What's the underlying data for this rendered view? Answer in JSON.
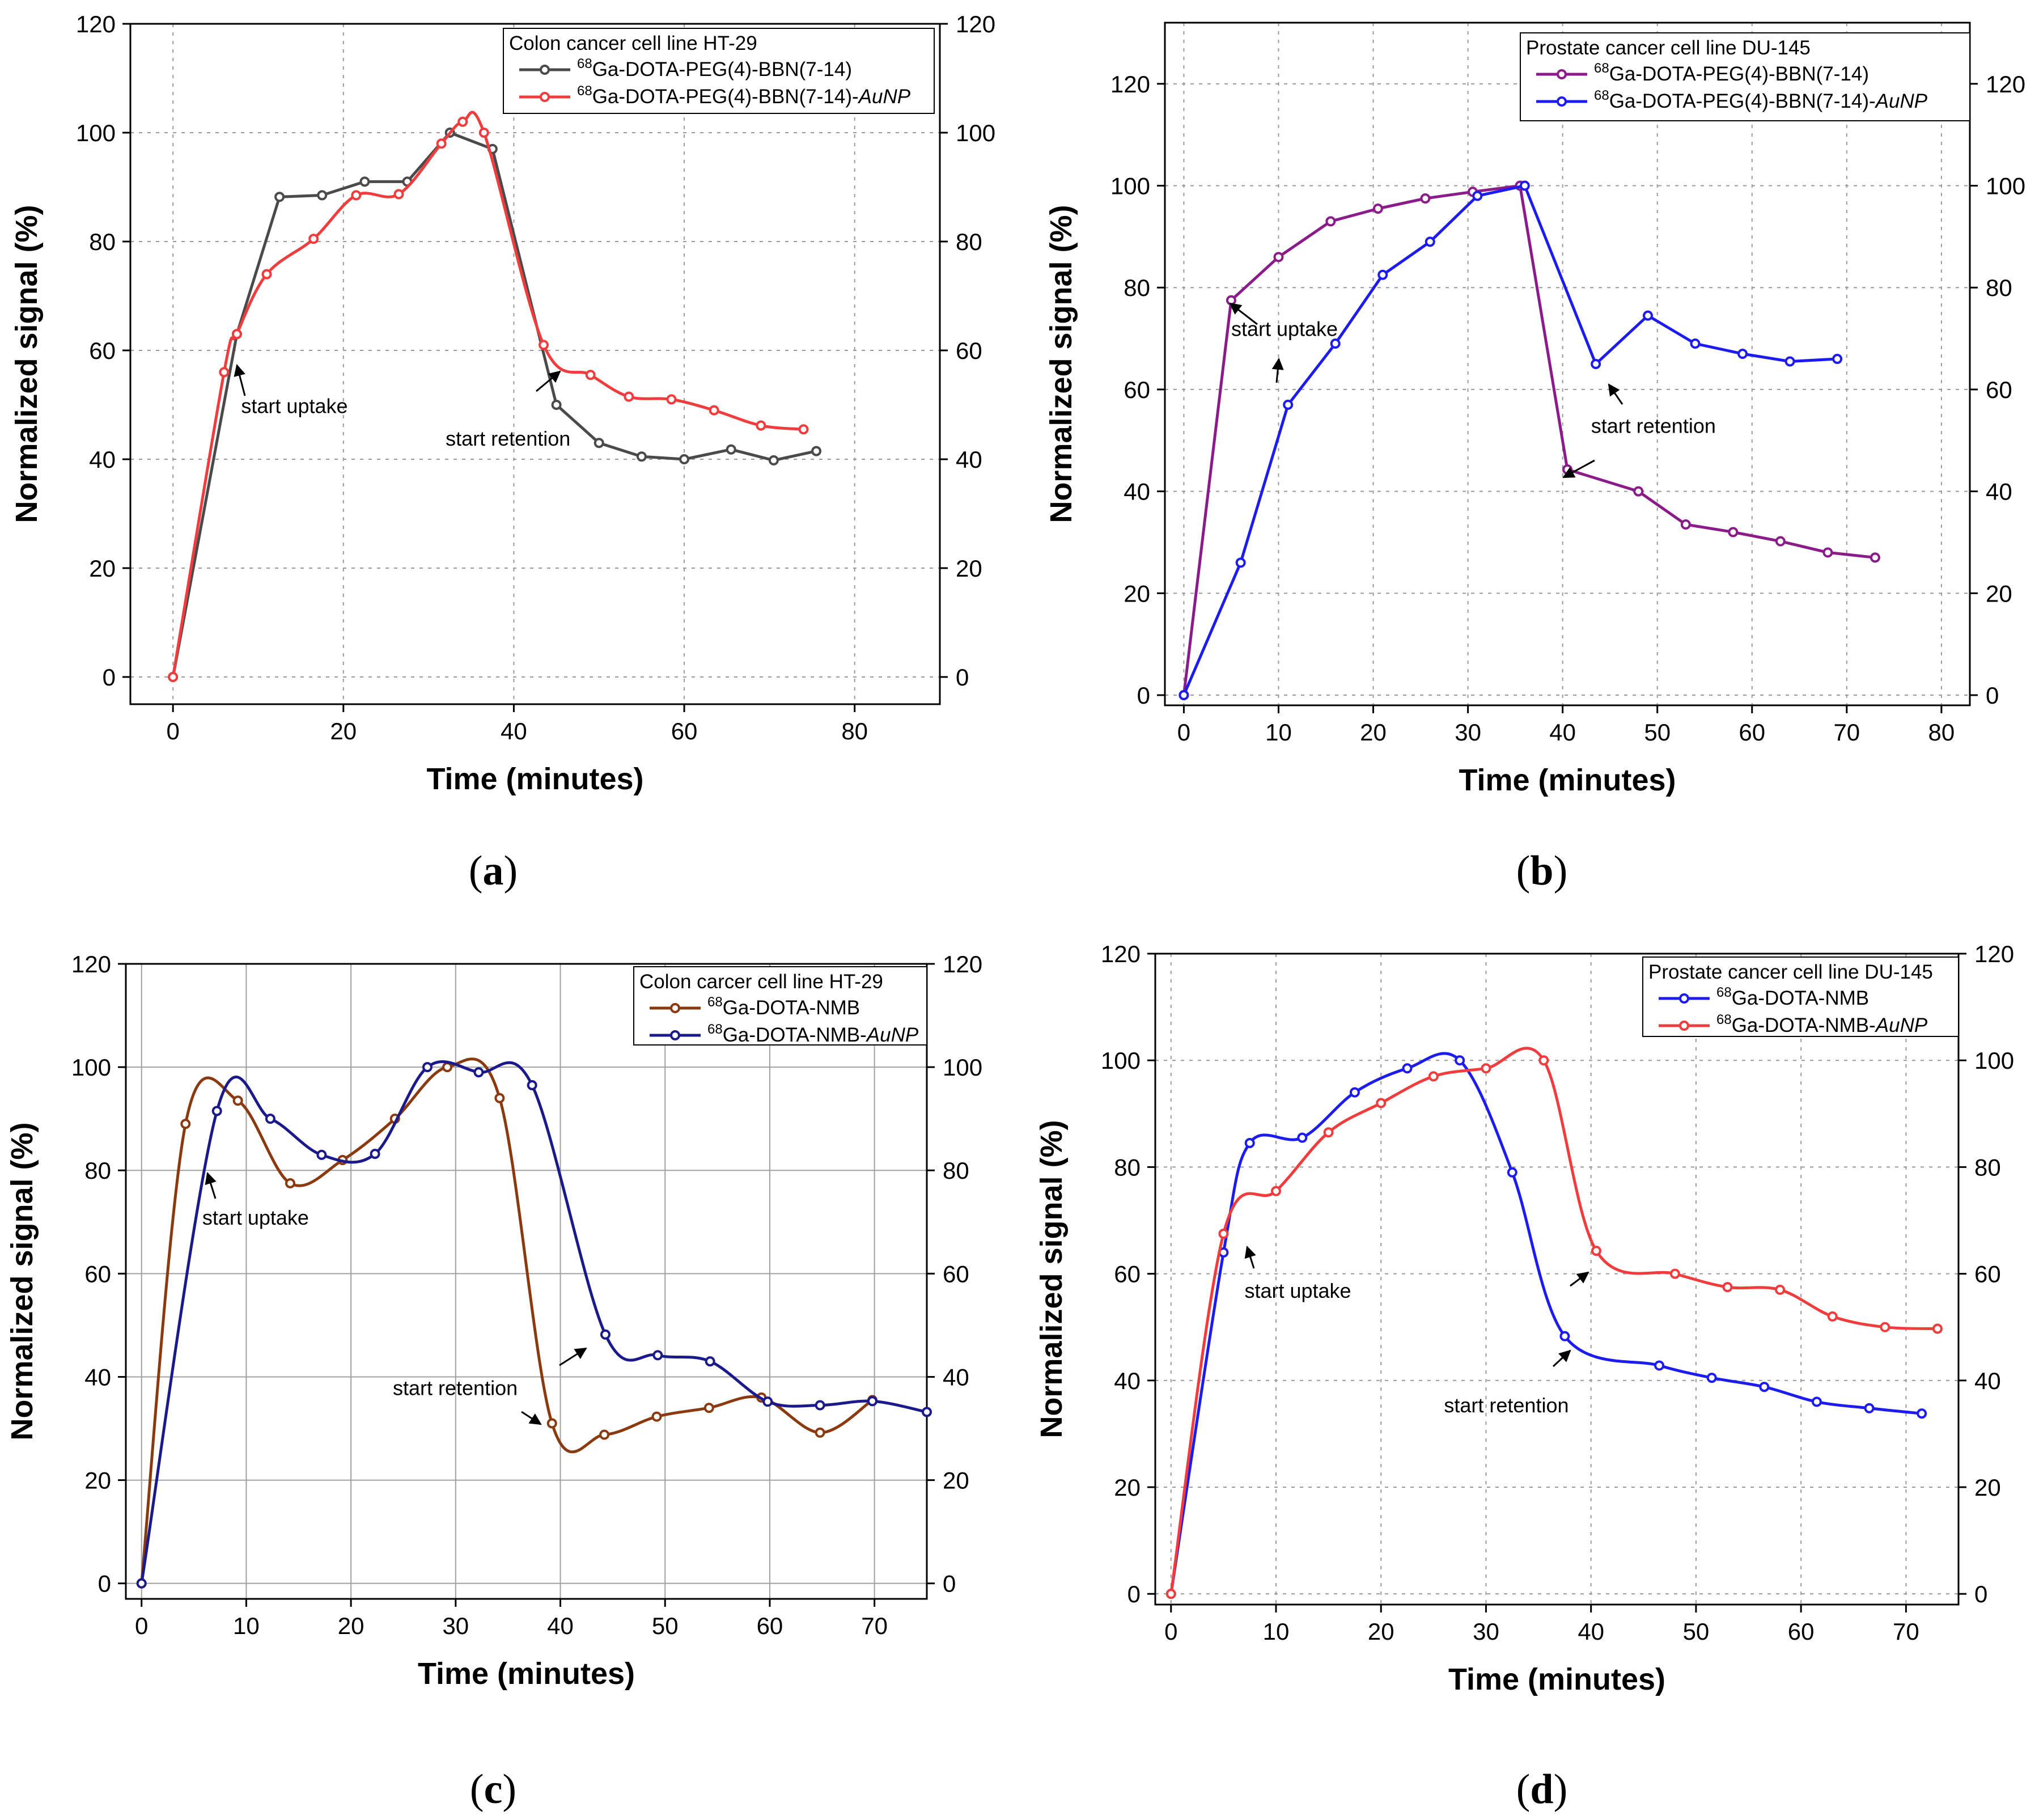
{
  "figure": {
    "panel_captions": [
      {
        "prefix": "(",
        "letter": "a",
        "suffix": ")"
      },
      {
        "prefix": "(",
        "letter": "b",
        "suffix": ")"
      },
      {
        "prefix": "(",
        "letter": "c",
        "suffix": ")"
      },
      {
        "prefix": "(",
        "letter": "d",
        "suffix": ")"
      }
    ]
  },
  "chart_data": [
    {
      "id": "a",
      "type": "line",
      "title": "Colon cancer cell line HT-29",
      "xlabel": "Time (minutes)",
      "ylabel": "Normalized signal (%)",
      "xlim": [
        -5,
        90
      ],
      "ylim": [
        -5,
        120
      ],
      "xticks": [
        0,
        20,
        40,
        60,
        80
      ],
      "yticks": [
        0,
        20,
        40,
        60,
        80,
        100,
        120
      ],
      "right_axis": true,
      "grid": "dotted",
      "legend_position": "top-right",
      "series": [
        {
          "sup": "68",
          "name": "Ga-DOTA-PEG(4)-BBN(7-14)",
          "name_italic": "",
          "color": "#4a4a4a",
          "smooth": false,
          "x": [
            0,
            7.5,
            12.5,
            17.5,
            22.5,
            27.5,
            32.5,
            37.5,
            45,
            50,
            55,
            60,
            65.5,
            70.5,
            75.5
          ],
          "y": [
            0,
            63,
            88.2,
            88.5,
            91,
            91,
            100,
            97,
            50,
            43,
            40.5,
            40,
            41.8,
            39.8,
            41.5
          ]
        },
        {
          "sup": "68",
          "name": "Ga-DOTA-PEG(4)-BBN(7-14)-",
          "name_italic": "AuNP",
          "color": "#f03c3c",
          "smooth": true,
          "x": [
            0,
            6,
            7.5,
            11,
            16.5,
            21.5,
            26.5,
            31.5,
            34,
            36.5,
            43.5,
            49,
            53.5,
            58.5,
            63.5,
            69,
            74
          ],
          "y": [
            0,
            56,
            63,
            74,
            80.5,
            88.5,
            88.7,
            98,
            102,
            100,
            61,
            55.5,
            51.5,
            51,
            49,
            46.2,
            45.5
          ]
        }
      ],
      "annotations": [
        {
          "text": "start uptake",
          "text_x": 8,
          "text_y": 48.5
        },
        {
          "text": "start retention",
          "text_x": 32,
          "text_y": 42.5
        }
      ]
    },
    {
      "id": "b",
      "type": "line",
      "title": "Prostate cancer cell line DU-145",
      "xlabel": "Time (minutes)",
      "ylabel": "Normalized signal (%)",
      "xlim": [
        -2,
        83
      ],
      "ylim": [
        -2,
        132
      ],
      "xticks": [
        0,
        10,
        20,
        30,
        40,
        50,
        60,
        70,
        80
      ],
      "yticks": [
        0,
        20,
        40,
        60,
        80,
        100,
        120
      ],
      "right_axis": true,
      "grid": "dotted",
      "legend_position": "top-right",
      "series": [
        {
          "sup": "68",
          "name": "Ga-DOTA-PEG(4)-BBN(7-14)",
          "name_italic": "",
          "color": "#8b1a8b",
          "smooth": false,
          "x": [
            0,
            5,
            10,
            15.5,
            20.5,
            25.5,
            30.5,
            35.5,
            40.5,
            48,
            53,
            58,
            63,
            68,
            73
          ],
          "y": [
            0,
            77.5,
            86,
            93,
            95.5,
            97.5,
            98.8,
            100,
            44.3,
            40,
            33.5,
            32,
            30.2,
            28,
            27
          ]
        },
        {
          "sup": "68",
          "name": "Ga-DOTA-PEG(4)-BBN(7-14)-",
          "name_italic": "AuNP",
          "color": "#1c1cf0",
          "smooth": false,
          "x": [
            0,
            6,
            11,
            16,
            21,
            26,
            31,
            36,
            43.5,
            49,
            54,
            59,
            64,
            69
          ],
          "y": [
            0,
            26,
            57,
            69,
            82.5,
            89,
            98,
            100,
            65,
            74.5,
            69,
            67,
            65.5,
            66
          ]
        }
      ],
      "annotations": [
        {
          "text": "start uptake",
          "text_x": 5,
          "text_y": 70.5
        },
        {
          "text": "start retention",
          "text_x": 43,
          "text_y": 51.5
        }
      ]
    },
    {
      "id": "c",
      "type": "line",
      "title": "Colon carcer cell line HT-29",
      "xlabel": "Time (minutes)",
      "ylabel": "Normalized signal (%)",
      "xlim": [
        -1.5,
        75
      ],
      "ylim": [
        -3,
        120
      ],
      "xticks": [
        0,
        10,
        20,
        30,
        40,
        50,
        60,
        70
      ],
      "yticks": [
        0,
        20,
        40,
        60,
        80,
        100,
        120
      ],
      "right_axis": true,
      "grid": "solid",
      "legend_position": "top-right",
      "series": [
        {
          "sup": "68",
          "name": "Ga-DOTA-NMB",
          "name_italic": "",
          "color": "#8b3a0f",
          "smooth": true,
          "x": [
            0,
            4.2,
            9.2,
            14.2,
            19.2,
            24.2,
            29.2,
            34.2,
            39.2,
            44.2,
            49.2,
            54.2,
            59.2,
            64.8,
            69.8
          ],
          "y": [
            0,
            89,
            93.5,
            77.5,
            82,
            90,
            100,
            94,
            31,
            28.8,
            32.3,
            34,
            36,
            29.2,
            35.5
          ]
        },
        {
          "sup": "68",
          "name": "Ga-DOTA-NMB-",
          "name_italic": "AuNP",
          "color": "#1a1a8a",
          "smooth": true,
          "x": [
            0,
            7.2,
            12.3,
            17.2,
            22.3,
            27.3,
            32.2,
            37.3,
            44.3,
            49.3,
            54.3,
            59.8,
            64.8,
            69.8,
            75
          ],
          "y": [
            0,
            91.5,
            90,
            83,
            83.2,
            100,
            99,
            96.5,
            48.2,
            44.2,
            43,
            35.2,
            34.5,
            35.3,
            33.2
          ]
        }
      ],
      "annotations": [
        {
          "text": "start uptake",
          "text_x": 5.8,
          "text_y": 69.5
        },
        {
          "text": "start retention",
          "text_x": 24,
          "text_y": 36.5
        }
      ]
    },
    {
      "id": "d",
      "type": "line",
      "title": "Prostate cancer cell line DU-145",
      "xlabel": "Time (minutes)",
      "ylabel": "Normalized signal (%)",
      "xlim": [
        -1.5,
        75
      ],
      "ylim": [
        -2,
        120
      ],
      "xticks": [
        0,
        10,
        20,
        30,
        40,
        50,
        60,
        70
      ],
      "yticks": [
        0,
        20,
        40,
        60,
        80,
        100,
        120
      ],
      "right_axis": true,
      "grid": "dotted",
      "legend_position": "top-right",
      "series": [
        {
          "sup": "68",
          "name": "Ga-DOTA-NMB",
          "name_italic": "",
          "color": "#1c1cf0",
          "smooth": true,
          "x": [
            0,
            5,
            7.5,
            12.5,
            17.5,
            22.5,
            27.5,
            32.5,
            37.5,
            46.5,
            51.5,
            56.5,
            61.5,
            66.5,
            71.5
          ],
          "y": [
            0,
            64,
            84.5,
            85.5,
            94,
            98.5,
            100,
            79,
            48.3,
            42.8,
            40.5,
            38.8,
            36,
            34.8,
            33.8
          ]
        },
        {
          "sup": "68",
          "name": "Ga-DOTA-NMB-",
          "name_italic": "AuNP",
          "color": "#f03c3c",
          "smooth": true,
          "x": [
            0,
            5,
            10,
            15,
            20,
            25,
            30,
            35.5,
            40.5,
            48,
            53,
            58,
            63,
            68,
            73
          ],
          "y": [
            0,
            67.5,
            75.5,
            86.5,
            92,
            97,
            98.5,
            100,
            64.3,
            60,
            57.5,
            57,
            52,
            50,
            49.7
          ]
        }
      ],
      "annotations": [
        {
          "text": "start uptake",
          "text_x": 7,
          "text_y": 55.5
        },
        {
          "text": "start retention",
          "text_x": 26,
          "text_y": 34
        }
      ]
    }
  ]
}
